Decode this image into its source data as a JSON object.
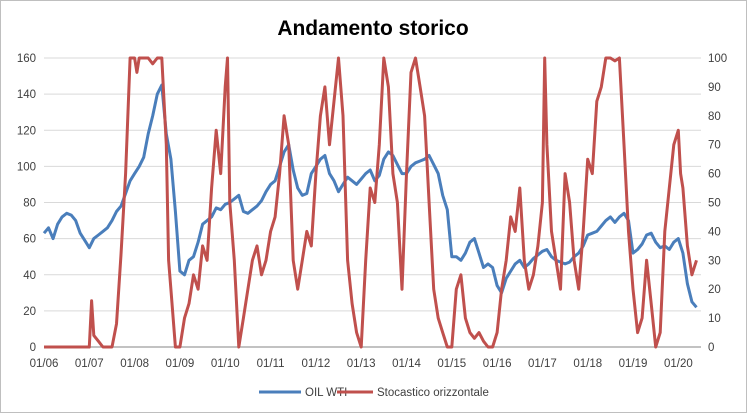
{
  "chart_data": {
    "type": "line",
    "title": "Andamento storico",
    "xlabel": "",
    "ylabel": "",
    "y_left_lim": [
      0,
      160
    ],
    "y_right_lim": [
      0,
      100
    ],
    "y_left_ticks": [
      "0",
      "20",
      "40",
      "60",
      "80",
      "100",
      "120",
      "140",
      "160"
    ],
    "y_right_ticks": [
      "0",
      "10",
      "20",
      "30",
      "40",
      "50",
      "60",
      "70",
      "80",
      "90",
      "100"
    ],
    "x_ticks": [
      "01/06",
      "01/07",
      "01/08",
      "01/09",
      "01/10",
      "01/11",
      "01/12",
      "01/13",
      "01/14",
      "01/15",
      "01/16",
      "01/17",
      "01/18",
      "01/19",
      "01/20"
    ],
    "x_range_years": [
      2006.0,
      2020.5
    ],
    "grid": {
      "horizontal": true,
      "vertical": false
    },
    "legend_position": "bottom",
    "series": [
      {
        "name": "OIL WTI",
        "axis": "left",
        "color": "#4a7ebb",
        "x": [
          2006.0,
          2006.1,
          2006.2,
          2006.3,
          2006.4,
          2006.5,
          2006.6,
          2006.7,
          2006.8,
          2006.9,
          2007.0,
          2007.1,
          2007.2,
          2007.3,
          2007.4,
          2007.5,
          2007.6,
          2007.7,
          2007.8,
          2007.9,
          2008.0,
          2008.1,
          2008.2,
          2008.3,
          2008.4,
          2008.5,
          2008.6,
          2008.7,
          2008.8,
          2008.9,
          2009.0,
          2009.1,
          2009.2,
          2009.3,
          2009.4,
          2009.5,
          2009.6,
          2009.7,
          2009.8,
          2009.9,
          2010.0,
          2010.1,
          2010.2,
          2010.3,
          2010.4,
          2010.5,
          2010.6,
          2010.7,
          2010.8,
          2010.9,
          2011.0,
          2011.1,
          2011.2,
          2011.3,
          2011.4,
          2011.5,
          2011.6,
          2011.7,
          2011.8,
          2011.9,
          2012.0,
          2012.1,
          2012.2,
          2012.3,
          2012.4,
          2012.5,
          2012.6,
          2012.7,
          2012.8,
          2012.9,
          2013.0,
          2013.1,
          2013.2,
          2013.3,
          2013.4,
          2013.5,
          2013.6,
          2013.7,
          2013.8,
          2013.9,
          2014.0,
          2014.1,
          2014.2,
          2014.3,
          2014.4,
          2014.5,
          2014.6,
          2014.7,
          2014.8,
          2014.9,
          2015.0,
          2015.1,
          2015.2,
          2015.3,
          2015.4,
          2015.5,
          2015.6,
          2015.7,
          2015.8,
          2015.9,
          2016.0,
          2016.1,
          2016.2,
          2016.3,
          2016.4,
          2016.5,
          2016.6,
          2016.7,
          2016.8,
          2016.9,
          2017.0,
          2017.1,
          2017.2,
          2017.3,
          2017.4,
          2017.5,
          2017.6,
          2017.7,
          2017.8,
          2017.9,
          2018.0,
          2018.1,
          2018.2,
          2018.3,
          2018.4,
          2018.5,
          2018.6,
          2018.7,
          2018.8,
          2018.9,
          2019.0,
          2019.1,
          2019.2,
          2019.3,
          2019.4,
          2019.5,
          2019.6,
          2019.7,
          2019.8,
          2019.9,
          2020.0,
          2020.1,
          2020.2,
          2020.3,
          2020.4
        ],
        "values": [
          63,
          66,
          60,
          68,
          72,
          74,
          73,
          70,
          63,
          59,
          55,
          60,
          62,
          64,
          66,
          70,
          75,
          78,
          85,
          92,
          96,
          100,
          105,
          118,
          128,
          140,
          145,
          118,
          104,
          75,
          42,
          40,
          48,
          50,
          58,
          68,
          70,
          72,
          77,
          76,
          79,
          80,
          82,
          84,
          75,
          74,
          76,
          78,
          81,
          86,
          90,
          92,
          100,
          108,
          112,
          98,
          88,
          84,
          85,
          96,
          100,
          104,
          106,
          96,
          92,
          86,
          90,
          94,
          92,
          90,
          93,
          96,
          98,
          92,
          95,
          104,
          108,
          106,
          101,
          96,
          96,
          100,
          102,
          103,
          104,
          106,
          101,
          96,
          84,
          76,
          50,
          50,
          48,
          52,
          58,
          60,
          52,
          44,
          46,
          44,
          34,
          30,
          38,
          42,
          46,
          48,
          44,
          46,
          49,
          51,
          53,
          54,
          50,
          48,
          47,
          46,
          47,
          50,
          52,
          56,
          62,
          63,
          64,
          67,
          70,
          72,
          69,
          72,
          74,
          70,
          52,
          54,
          57,
          62,
          63,
          58,
          55,
          56,
          54,
          58,
          60,
          52,
          35,
          25,
          22
        ]
      },
      {
        "name": "Stocastico orizzontale",
        "axis": "right",
        "color": "#c0504d",
        "x": [
          2006.0,
          2006.2,
          2006.4,
          2006.6,
          2006.8,
          2007.0,
          2007.05,
          2007.1,
          2007.2,
          2007.3,
          2007.4,
          2007.5,
          2007.6,
          2007.7,
          2007.8,
          2007.9,
          2008.0,
          2008.05,
          2008.1,
          2008.2,
          2008.3,
          2008.4,
          2008.5,
          2008.6,
          2008.7,
          2008.75,
          2008.8,
          2008.9,
          2009.0,
          2009.1,
          2009.2,
          2009.3,
          2009.4,
          2009.5,
          2009.6,
          2009.7,
          2009.8,
          2009.9,
          2010.0,
          2010.05,
          2010.1,
          2010.2,
          2010.3,
          2010.4,
          2010.5,
          2010.6,
          2010.7,
          2010.8,
          2010.9,
          2011.0,
          2011.1,
          2011.2,
          2011.3,
          2011.4,
          2011.5,
          2011.6,
          2011.7,
          2011.8,
          2011.9,
          2012.0,
          2012.1,
          2012.2,
          2012.3,
          2012.4,
          2012.5,
          2012.6,
          2012.7,
          2012.8,
          2012.9,
          2013.0,
          2013.1,
          2013.2,
          2013.3,
          2013.4,
          2013.5,
          2013.6,
          2013.7,
          2013.8,
          2013.9,
          2014.0,
          2014.1,
          2014.2,
          2014.3,
          2014.4,
          2014.5,
          2014.6,
          2014.7,
          2014.8,
          2014.9,
          2015.0,
          2015.1,
          2015.2,
          2015.3,
          2015.4,
          2015.5,
          2015.6,
          2015.7,
          2015.8,
          2015.9,
          2016.0,
          2016.1,
          2016.2,
          2016.3,
          2016.4,
          2016.5,
          2016.6,
          2016.7,
          2016.8,
          2016.9,
          2017.0,
          2017.05,
          2017.1,
          2017.2,
          2017.3,
          2017.4,
          2017.5,
          2017.6,
          2017.7,
          2017.8,
          2017.9,
          2018.0,
          2018.1,
          2018.2,
          2018.3,
          2018.4,
          2018.5,
          2018.6,
          2018.7,
          2018.8,
          2018.9,
          2019.0,
          2019.1,
          2019.2,
          2019.3,
          2019.4,
          2019.5,
          2019.6,
          2019.7,
          2019.8,
          2019.9,
          2020.0,
          2020.05,
          2020.1,
          2020.2,
          2020.3,
          2020.4
        ],
        "values": [
          0,
          0,
          0,
          0,
          0,
          0,
          16,
          4,
          2,
          0,
          0,
          0,
          8,
          32,
          60,
          100,
          100,
          95,
          100,
          100,
          100,
          98,
          100,
          100,
          70,
          30,
          20,
          0,
          0,
          10,
          15,
          25,
          20,
          35,
          30,
          55,
          75,
          60,
          90,
          100,
          50,
          30,
          0,
          10,
          20,
          30,
          35,
          25,
          30,
          40,
          45,
          60,
          80,
          70,
          30,
          20,
          30,
          40,
          35,
          60,
          80,
          90,
          70,
          85,
          100,
          80,
          30,
          15,
          5,
          0,
          30,
          55,
          50,
          70,
          100,
          90,
          60,
          50,
          20,
          60,
          95,
          100,
          90,
          80,
          50,
          20,
          10,
          5,
          0,
          0,
          20,
          25,
          10,
          5,
          3,
          5,
          2,
          0,
          0,
          5,
          20,
          30,
          45,
          40,
          55,
          30,
          20,
          25,
          35,
          50,
          100,
          70,
          40,
          30,
          20,
          60,
          50,
          30,
          20,
          40,
          65,
          60,
          85,
          90,
          100,
          100,
          99,
          100,
          70,
          40,
          20,
          5,
          10,
          30,
          15,
          0,
          5,
          40,
          55,
          70,
          75,
          60,
          55,
          35,
          25,
          30
        ]
      }
    ]
  }
}
